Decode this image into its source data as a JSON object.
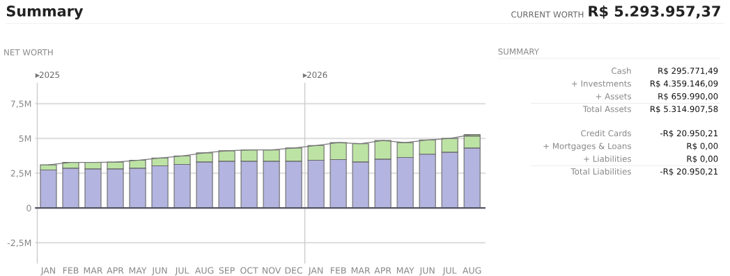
{
  "chart_data": [
    {
      "type": "bar",
      "title": "NET WORTH",
      "stacked": true,
      "grid": "y",
      "annotations": [
        "Summary",
        "CURRENT WORTH",
        "R$ 5.293.957,37",
        "2025",
        "2026"
      ],
      "categories": [
        "JAN",
        "FEB",
        "MAR",
        "APR",
        "MAY",
        "JUN",
        "JUL",
        "AUG",
        "SEP",
        "OCT",
        "NOV",
        "DEC",
        "JAN",
        "FEB",
        "MAR",
        "APR",
        "MAY",
        "JUN",
        "JUL",
        "AUG"
      ],
      "series": [
        {
          "color": "#b4b4e0",
          "values": [
            2.73,
            2.86,
            2.81,
            2.81,
            2.86,
            3.03,
            3.13,
            3.31,
            3.36,
            3.36,
            3.36,
            3.36,
            3.43,
            3.48,
            3.31,
            3.51,
            3.63,
            3.87,
            4.01,
            4.31
          ]
        },
        {
          "color": "#bde3a4",
          "values": [
            0.37,
            0.42,
            0.47,
            0.49,
            0.57,
            0.56,
            0.61,
            0.65,
            0.75,
            0.81,
            0.81,
            0.95,
            1.06,
            1.22,
            1.31,
            1.34,
            1.07,
            1.02,
            0.99,
            0.86
          ]
        },
        {
          "color": "#8fa880",
          "values": [
            null,
            null,
            null,
            null,
            null,
            null,
            null,
            null,
            null,
            null,
            null,
            null,
            null,
            null,
            null,
            null,
            null,
            null,
            null,
            0.11
          ]
        },
        {
          "type": "line",
          "color": "#777777",
          "values": [
            3.1,
            3.28,
            3.28,
            3.3,
            3.43,
            3.59,
            3.74,
            3.96,
            4.11,
            4.17,
            4.17,
            4.31,
            4.49,
            4.7,
            4.62,
            4.85,
            4.7,
            4.89,
            5.0,
            5.28
          ]
        }
      ],
      "ylim": [
        -4.0,
        9.0
      ],
      "yticks": [
        {
          "value": -2.5,
          "label": "-2,5M"
        },
        0,
        {
          "value": 2.5,
          "label": "2,5M"
        },
        {
          "value": 5,
          "label": "5M"
        },
        {
          "value": 7.5,
          "label": "7,5M"
        }
      ]
    },
    {
      "type": "other",
      "title": "SUMMARY",
      "annotations": [
        "Cash",
        "R$ 295.771,49",
        "+ Investments",
        "R$ 4.359.146,09",
        "+ Assets",
        "R$ 659.990,00",
        "Total Assets",
        "R$ 5.314.907,58",
        "Credit Cards",
        "-R$ 20.950,21",
        "+ Mortgages & Loans",
        "R$ 0,00",
        "+ Liabilities",
        "R$ 0,00",
        "Total Liabilities",
        "-R$ 20.950,21"
      ]
    }
  ]
}
